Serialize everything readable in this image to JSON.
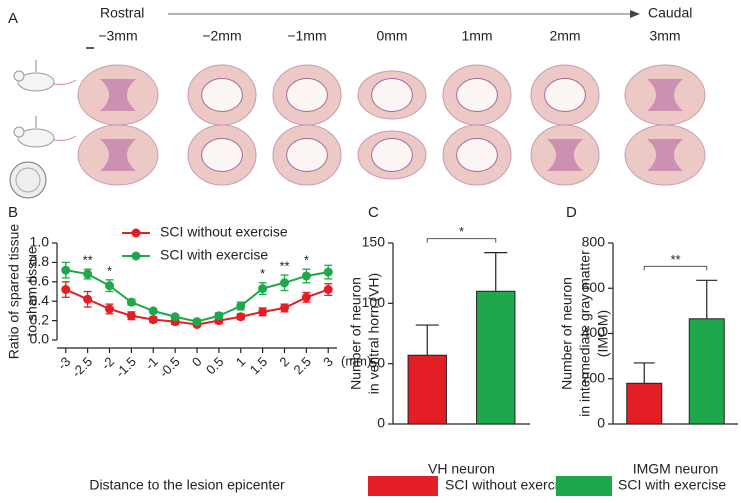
{
  "panel_a": {
    "label": "A",
    "start": "Rostral",
    "end": "Caudal",
    "positions": [
      "−3mm",
      "−2mm",
      "−1mm",
      "0mm",
      "1mm",
      "2mm",
      "3mm"
    ]
  },
  "chart_data": [
    {
      "type": "line",
      "panel_label": "B",
      "y_label": [
        "Ratio of spared tissue",
        "to sham tissue"
      ],
      "x_label": "Distance to the lesion epicenter",
      "x_unit": "(mm)",
      "x": [
        -3,
        -2.5,
        -2,
        -1.5,
        -1,
        -0.5,
        0,
        0.5,
        1,
        1.5,
        2,
        2.5,
        3
      ],
      "xlim": [
        -3.2,
        3.2
      ],
      "xticks": [
        -3,
        -2.5,
        -2,
        -1.5,
        -1,
        -0.5,
        0,
        0.5,
        1,
        1.5,
        2,
        2.5,
        3
      ],
      "ylim": [
        0,
        1
      ],
      "yticks": [
        {
          "value": 0,
          "label": "0.0"
        },
        0.2,
        0.4,
        0.6,
        0.8,
        {
          "value": 1,
          "label": "1.0"
        }
      ],
      "legend": "upper center",
      "series": [
        {
          "name": "SCI without exercise",
          "color": "#e31e24",
          "values": [
            0.52,
            0.42,
            0.32,
            0.25,
            0.21,
            0.19,
            0.16,
            0.2,
            0.24,
            0.29,
            0.33,
            0.44,
            0.52
          ],
          "errors": [
            0.08,
            0.08,
            0.05,
            0.04,
            0.03,
            0.03,
            0.02,
            0.03,
            0.03,
            0.04,
            0.04,
            0.05,
            0.06
          ]
        },
        {
          "name": "SCI with exercise",
          "color": "#1ea84b",
          "values": [
            0.72,
            0.68,
            0.56,
            0.39,
            0.3,
            0.24,
            0.19,
            0.25,
            0.35,
            0.53,
            0.59,
            0.66,
            0.7
          ],
          "errors": [
            0.08,
            0.05,
            0.06,
            0.03,
            0.02,
            0.02,
            0.02,
            0.03,
            0.04,
            0.06,
            0.08,
            0.07,
            0.07
          ]
        }
      ],
      "annotations": [
        {
          "x": -2.5,
          "text": "**"
        },
        {
          "x": -2,
          "text": "*"
        },
        {
          "x": 1.5,
          "text": "*"
        },
        {
          "x": 2,
          "text": "**"
        },
        {
          "x": 2.5,
          "text": "*"
        }
      ]
    },
    {
      "type": "bar",
      "panel_label": "C",
      "y_label": [
        "Number of neuron",
        "in ventral horn (VH)"
      ],
      "x_label": "VH neuron",
      "ylim": [
        0,
        150
      ],
      "yticks": [
        0,
        50,
        100,
        150
      ],
      "legend": "bottom",
      "significance": "*",
      "series": [
        {
          "name": "SCI without exercise",
          "color": "#e31e24",
          "values": [
            57
          ],
          "errors": [
            25
          ]
        },
        {
          "name": "SCI with exercise",
          "color": "#1ea84b",
          "values": [
            110
          ],
          "errors": [
            32
          ]
        }
      ]
    },
    {
      "type": "bar",
      "panel_label": "D",
      "y_label": [
        "Number of neuron",
        "in intermediate gray matter",
        "(IMGM)"
      ],
      "x_label": "IMGM neuron",
      "ylim": [
        0,
        800
      ],
      "yticks": [
        0,
        200,
        400,
        600,
        800
      ],
      "significance": "**",
      "series": [
        {
          "color": "#e31e24",
          "values": [
            180
          ],
          "errors": [
            90
          ]
        },
        {
          "color": "#1ea84b",
          "values": [
            465
          ],
          "errors": [
            170
          ]
        }
      ]
    }
  ]
}
